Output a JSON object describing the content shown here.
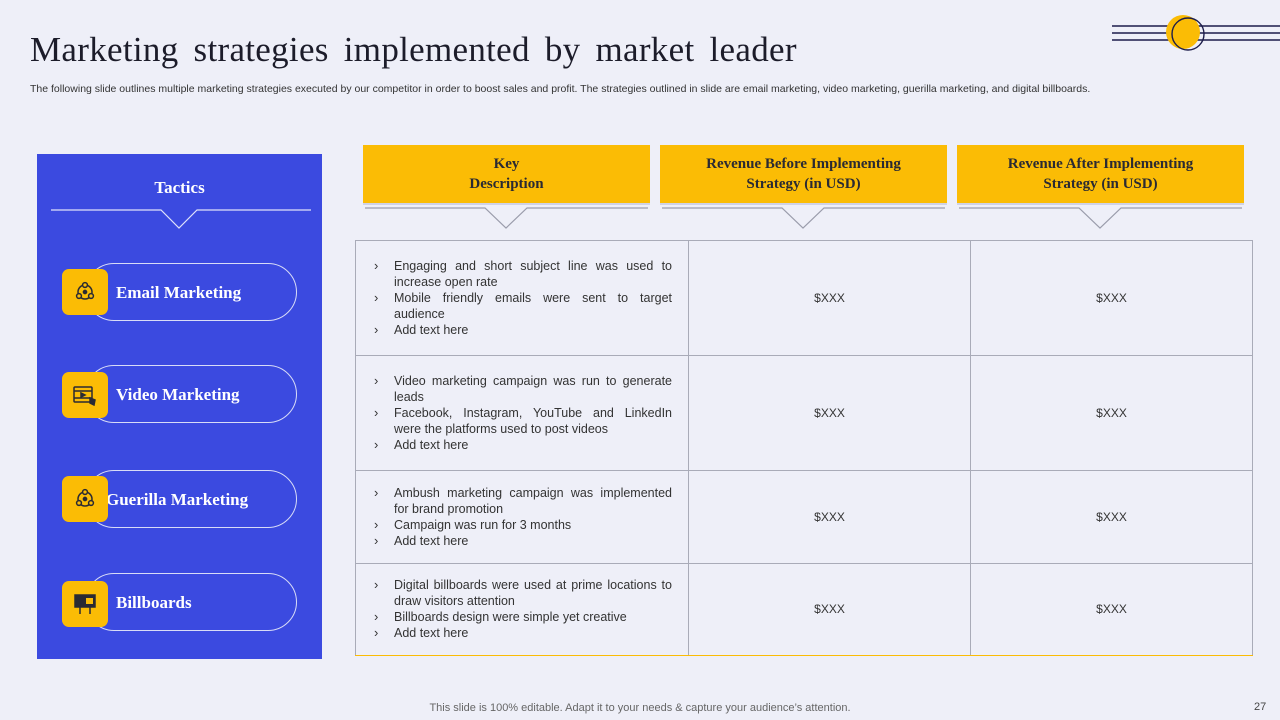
{
  "title": "Marketing strategies implemented by market leader",
  "subtitle": "The following slide outlines multiple marketing strategies executed by our competitor in order to boost sales and profit. The strategies outlined in slide are email marketing, video marketing, guerilla marketing, and digital billboards.",
  "tactics_header": "Tactics",
  "tactics": [
    {
      "label": "Email Marketing",
      "icon": "network-people-icon"
    },
    {
      "label": "Video Marketing",
      "icon": "video-clapper-icon"
    },
    {
      "label": "Guerilla Marketing",
      "icon": "network-people-icon"
    },
    {
      "label": "Billboards",
      "icon": "billboard-ad-icon"
    }
  ],
  "headers": [
    "Key\nDescription",
    "Revenue Before Implementing\nStrategy (in USD)",
    "Revenue After Implementing\nStrategy (in USD)"
  ],
  "rows": [
    {
      "bullets": [
        "Engaging and short subject line was used to increase open rate",
        "Mobile friendly emails were sent to target audience",
        "Add text here"
      ],
      "before": "$XXX",
      "after": "$XXX"
    },
    {
      "bullets": [
        "Video marketing campaign was run to generate leads",
        "Facebook, Instagram, YouTube and LinkedIn were the platforms used to post videos",
        "Add text here"
      ],
      "before": "$XXX",
      "after": "$XXX"
    },
    {
      "bullets": [
        "Ambush marketing campaign was implemented for brand promotion",
        "Campaign was run for 3 months",
        "Add text here"
      ],
      "before": "$XXX",
      "after": "$XXX"
    },
    {
      "bullets": [
        "Digital billboards were used at prime locations to draw visitors attention",
        "Billboards design were simple yet creative",
        "Add text here"
      ],
      "before": "$XXX",
      "after": "$XXX"
    }
  ],
  "footer": "This slide is 100% editable. Adapt it to your needs & capture your audience’s attention.",
  "page_number": "27",
  "colors": {
    "accent": "#fbbc05",
    "panel": "#3b4ae0",
    "background": "#eeeff8"
  }
}
